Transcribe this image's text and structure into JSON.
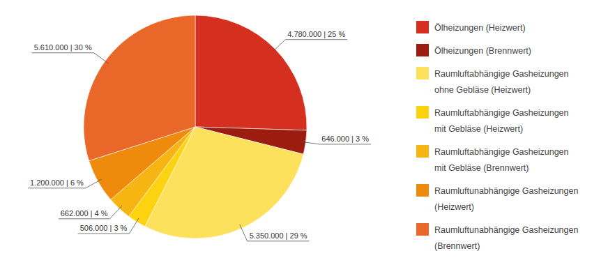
{
  "chart_data": {
    "type": "pie",
    "categories": [
      "Ölheizungen (Heizwert)",
      "Ölheizungen (Brennwert)",
      "Raumluftabhängige Gasheizungen ohne Gebläse (Heizwert)",
      "Raumluftabhängige Gasheizungen mit Gebläse (Heizwert)",
      "Raumluftabhängige Gasheizungen mit Gebläse (Brennwert)",
      "Raumluftunabhängige Gasheizungen (Heizwert)",
      "Raumluftunabhängige Gasheizungen (Brennwert)"
    ],
    "values": [
      4780000,
      646000,
      5350000,
      506000,
      662000,
      1200000,
      5610000
    ],
    "value_labels": [
      "4.780.000 | 25 %",
      "646.000 | 3 %",
      "5.350.000 | 29 %",
      "506.000 | 3 %",
      "662.000 | 4 %",
      "1.200.000 | 6 %",
      "5.610.000 | 30 %"
    ],
    "colors": [
      "#d52f1f",
      "#9c1c10",
      "#fde05c",
      "#fdd20f",
      "#f7b514",
      "#ef8b0c",
      "#ea672a"
    ],
    "data_labels": true,
    "legend": "right"
  }
}
